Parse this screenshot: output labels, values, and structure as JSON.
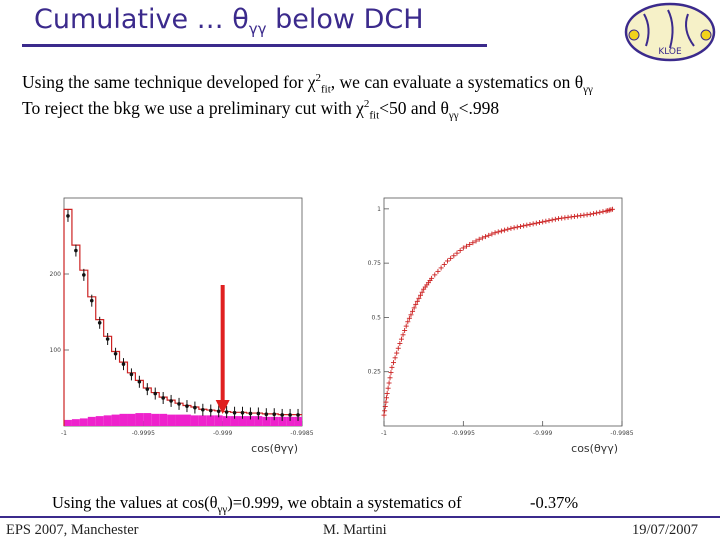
{
  "slide": {
    "title_main": "Cumulative … θ",
    "title_sub": "γγ",
    "title_tail": " below DCH",
    "line1_a": "Using the same technique developed for χ",
    "line1_sup": "2",
    "line1_sub": "fit",
    "line1_b": ", we can evaluate a systematics on θ",
    "line1_sub2": "γγ",
    "line2_a": "To reject the bkg we use a preliminary cut with χ",
    "line2_sup": "2",
    "line2_sub": "fit",
    "line2_b": "<50 and θ",
    "line2_sub2": "γγ",
    "line2_c": "<.998",
    "bottom_a": "Using the values at cos(θ",
    "bottom_sub": "γγ",
    "bottom_b": ")=0.999, we obtain a systematics of",
    "result": "-0.37%",
    "footer_left": "EPS 2007, Manchester",
    "footer_center": "M. Martini",
    "footer_right": "19/07/2007",
    "logo_text": "KLOE"
  },
  "colors": {
    "title": "#3b2a8c",
    "arrow": "#e02020",
    "fill": "#ee22cc",
    "curve": "#cc2222"
  },
  "chart_data": [
    {
      "type": "bar",
      "xlabel": "cos(θγγ)",
      "ylabel": "",
      "ylim": [
        0,
        300
      ],
      "xlim": [
        -1.0,
        -0.9985
      ],
      "ytick_labels": [
        "100",
        "200"
      ],
      "ytick_values": [
        100,
        200
      ],
      "xtick_labels": [
        "-1",
        "-0.9995",
        "-0.999",
        "-0.9985"
      ],
      "xtick_values": [
        -1.0,
        -0.9995,
        -0.999,
        -0.9985
      ],
      "x": [
        -1.0,
        -0.99995,
        -0.9999,
        -0.99985,
        -0.9998,
        -0.99975,
        -0.9997,
        -0.99965,
        -0.9996,
        -0.99955,
        -0.9995,
        -0.99945,
        -0.9994,
        -0.99935,
        -0.9993,
        -0.99925,
        -0.9992,
        -0.99915,
        -0.9991,
        -0.99905,
        -0.999,
        -0.99895,
        -0.9989,
        -0.99885,
        -0.9988,
        -0.99875,
        -0.9987,
        -0.99865,
        -0.9986,
        -0.99855
      ],
      "series": [
        {
          "values": [
            285,
            238,
            205,
            170,
            140,
            118,
            98,
            84,
            70,
            60,
            50,
            44,
            38,
            34,
            30,
            27,
            25,
            22,
            21,
            20,
            19,
            18,
            18,
            17,
            17,
            16,
            16,
            15,
            15,
            15
          ]
        },
        {
          "values": [
            8,
            9,
            10,
            12,
            13,
            14,
            15,
            16,
            16,
            17,
            17,
            16,
            16,
            15,
            15,
            15,
            14,
            14,
            14,
            14,
            13,
            13,
            13,
            13,
            13,
            12,
            12,
            12,
            12,
            12
          ]
        }
      ],
      "annotation_arrow_x": -0.999
    },
    {
      "type": "scatter",
      "xlabel": "cos(θγγ)",
      "ylabel": "",
      "ylim": [
        0,
        1.05
      ],
      "xlim": [
        -1.0,
        -0.9985
      ],
      "ytick_labels": [
        "0.25",
        "0.5",
        "0.75",
        "1"
      ],
      "ytick_values": [
        0.25,
        0.5,
        0.75,
        1.0
      ],
      "xtick_labels": [
        "-1",
        "-0.9995",
        "-0.999",
        "-0.9985"
      ],
      "xtick_values": [
        -1.0,
        -0.9995,
        -0.999,
        -0.9985
      ],
      "series": [
        {
          "x": [
            -1.0,
            -0.99998,
            -0.99995,
            -0.9999,
            -0.99985,
            -0.9998,
            -0.99975,
            -0.9997,
            -0.9996,
            -0.9995,
            -0.9994,
            -0.9993,
            -0.9992,
            -0.9991,
            -0.999,
            -0.9989,
            -0.9988,
            -0.9987,
            -0.9986,
            -0.99855
          ],
          "y": [
            0.05,
            0.15,
            0.27,
            0.38,
            0.48,
            0.56,
            0.63,
            0.68,
            0.76,
            0.82,
            0.86,
            0.89,
            0.91,
            0.925,
            0.94,
            0.955,
            0.965,
            0.975,
            0.99,
            1.0
          ]
        }
      ]
    }
  ]
}
